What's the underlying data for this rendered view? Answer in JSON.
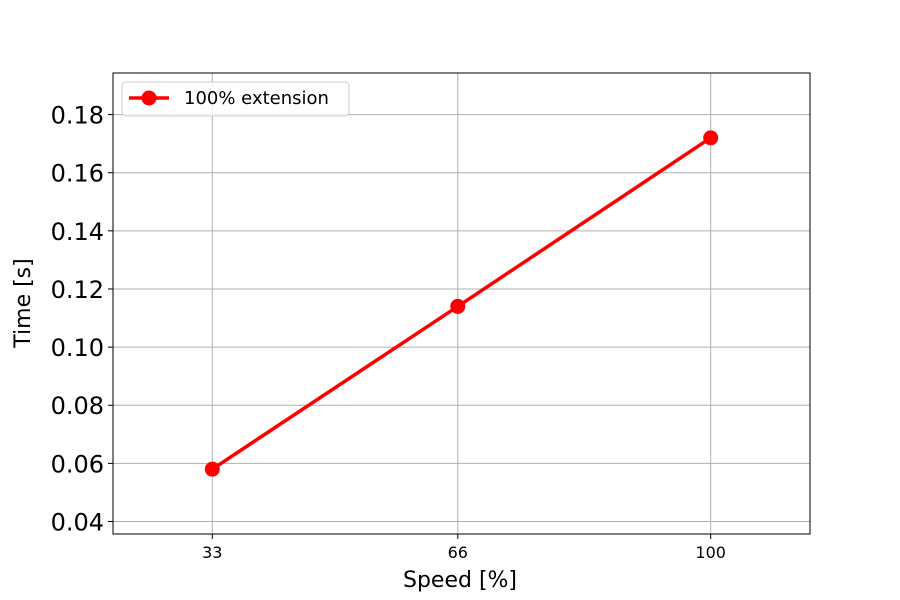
{
  "chart_data": {
    "type": "line",
    "x": [
      33,
      66,
      100
    ],
    "series": [
      {
        "name": "100% extension",
        "values": [
          0.058,
          0.114,
          0.172
        ],
        "color": "#ff0000",
        "marker": "circle"
      }
    ],
    "xlabel": "Speed [%]",
    "ylabel": "Time [s]",
    "xlim": [
      19.65,
      113.35
    ],
    "ylim": [
      0.0357,
      0.1943
    ],
    "xticks": [
      33,
      66,
      100
    ],
    "xtick_labels": [
      "33",
      "66",
      "100"
    ],
    "yticks": [
      0.04,
      0.06,
      0.08,
      0.1,
      0.12,
      0.14,
      0.16,
      0.18
    ],
    "ytick_labels": [
      "0.04",
      "0.06",
      "0.08",
      "0.10",
      "0.12",
      "0.14",
      "0.16",
      "0.18"
    ],
    "grid": true,
    "legend_position": "top-left"
  }
}
